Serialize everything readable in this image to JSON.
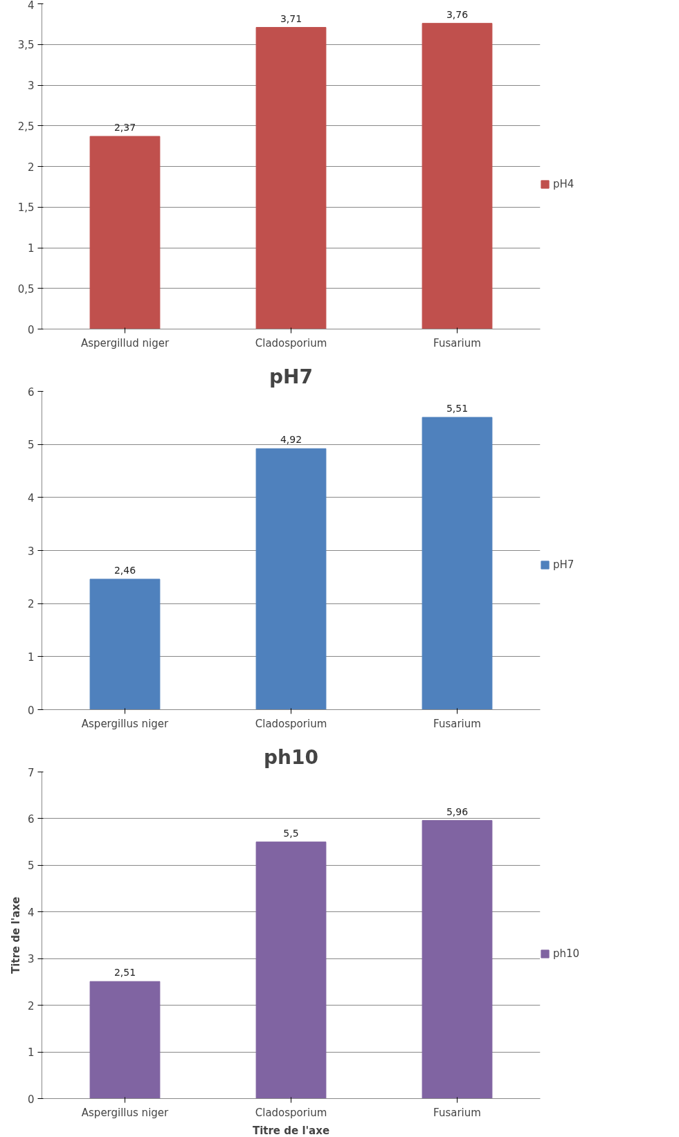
{
  "chart_data": [
    {
      "type": "bar",
      "categories": [
        "Aspergillud niger",
        "Cladosporium",
        "Fusarium"
      ],
      "series": [
        {
          "name": "pH4",
          "color": "#c0504d",
          "values": [
            2.37,
            3.71,
            3.76
          ],
          "value_labels": [
            "2,37",
            "3,71",
            "3,76"
          ]
        }
      ],
      "ylim": [
        0,
        4
      ],
      "yticks": [
        0,
        {
          "value": 0.5,
          "label": "0,5"
        },
        1,
        {
          "value": 1.5,
          "label": "1,5"
        },
        2,
        {
          "value": 2.5,
          "label": "2,5"
        },
        3,
        {
          "value": 3.5,
          "label": "3,5"
        },
        4
      ],
      "grid": "y",
      "legend": "right"
    },
    {
      "type": "bar",
      "title": "pH7",
      "categories": [
        "Aspergillus niger",
        "Cladosporium",
        "Fusarium"
      ],
      "series": [
        {
          "name": "pH7",
          "color": "#4f81bd",
          "values": [
            2.46,
            4.92,
            5.51
          ],
          "value_labels": [
            "2,46",
            "4,92",
            "5,51"
          ]
        }
      ],
      "ylim": [
        0,
        6
      ],
      "yticks": [
        0,
        1,
        2,
        3,
        4,
        5,
        6
      ],
      "grid": "y",
      "legend": "right"
    },
    {
      "type": "bar",
      "title": "ph10",
      "xlabel": "Titre de l'axe",
      "ylabel": "Titre de l'axe",
      "categories": [
        "Aspergillus niger",
        "Cladosporium",
        "Fusarium"
      ],
      "series": [
        {
          "name": "ph10",
          "color": "#8064a2",
          "values": [
            2.51,
            5.5,
            5.96
          ],
          "value_labels": [
            "2,51",
            "5,5",
            "5,96"
          ]
        }
      ],
      "ylim": [
        0,
        7
      ],
      "yticks": [
        0,
        1,
        2,
        3,
        4,
        5,
        6,
        7
      ],
      "grid": "y",
      "legend": "right"
    }
  ]
}
